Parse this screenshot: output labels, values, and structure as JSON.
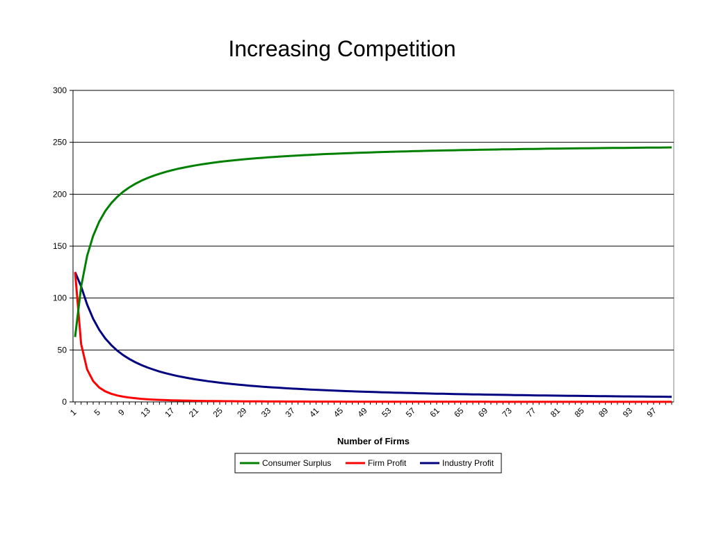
{
  "chart_data": {
    "type": "line",
    "title": "Increasing Competition",
    "xlabel": "Number of Firms",
    "ylabel": "",
    "ylim": [
      0,
      300
    ],
    "yticks": [
      0,
      50,
      100,
      150,
      200,
      250,
      300
    ],
    "x_range": [
      1,
      100
    ],
    "x_tick_labels": [
      1,
      5,
      9,
      13,
      17,
      21,
      25,
      29,
      33,
      37,
      41,
      45,
      49,
      53,
      57,
      61,
      65,
      69,
      73,
      77,
      81,
      85,
      89,
      93,
      97
    ],
    "grid": "horizontal",
    "legend_position": "bottom",
    "series": [
      {
        "name": "Consumer Surplus",
        "color": "#008000",
        "formula": "250*(n/(n+1))^2",
        "sample_values": [
          [
            1,
            62.5
          ],
          [
            2,
            111.1
          ],
          [
            5,
            173.6
          ],
          [
            10,
            206.6
          ],
          [
            20,
            226.8
          ],
          [
            50,
            240.3
          ],
          [
            100,
            245.1
          ]
        ]
      },
      {
        "name": "Firm Profit",
        "color": "#ff0000",
        "formula": "500/(n+1)^2",
        "sample_values": [
          [
            1,
            125
          ],
          [
            2,
            55.6
          ],
          [
            3,
            31.3
          ],
          [
            5,
            13.9
          ],
          [
            10,
            4.1
          ],
          [
            20,
            1.1
          ],
          [
            100,
            0.05
          ]
        ]
      },
      {
        "name": "Industry Profit",
        "color": "#000080",
        "formula": "500*n/(n+1)^2",
        "sample_values": [
          [
            1,
            125
          ],
          [
            2,
            111.1
          ],
          [
            5,
            69.4
          ],
          [
            10,
            41.3
          ],
          [
            20,
            22.7
          ],
          [
            50,
            9.6
          ],
          [
            100,
            4.9
          ]
        ]
      }
    ]
  }
}
